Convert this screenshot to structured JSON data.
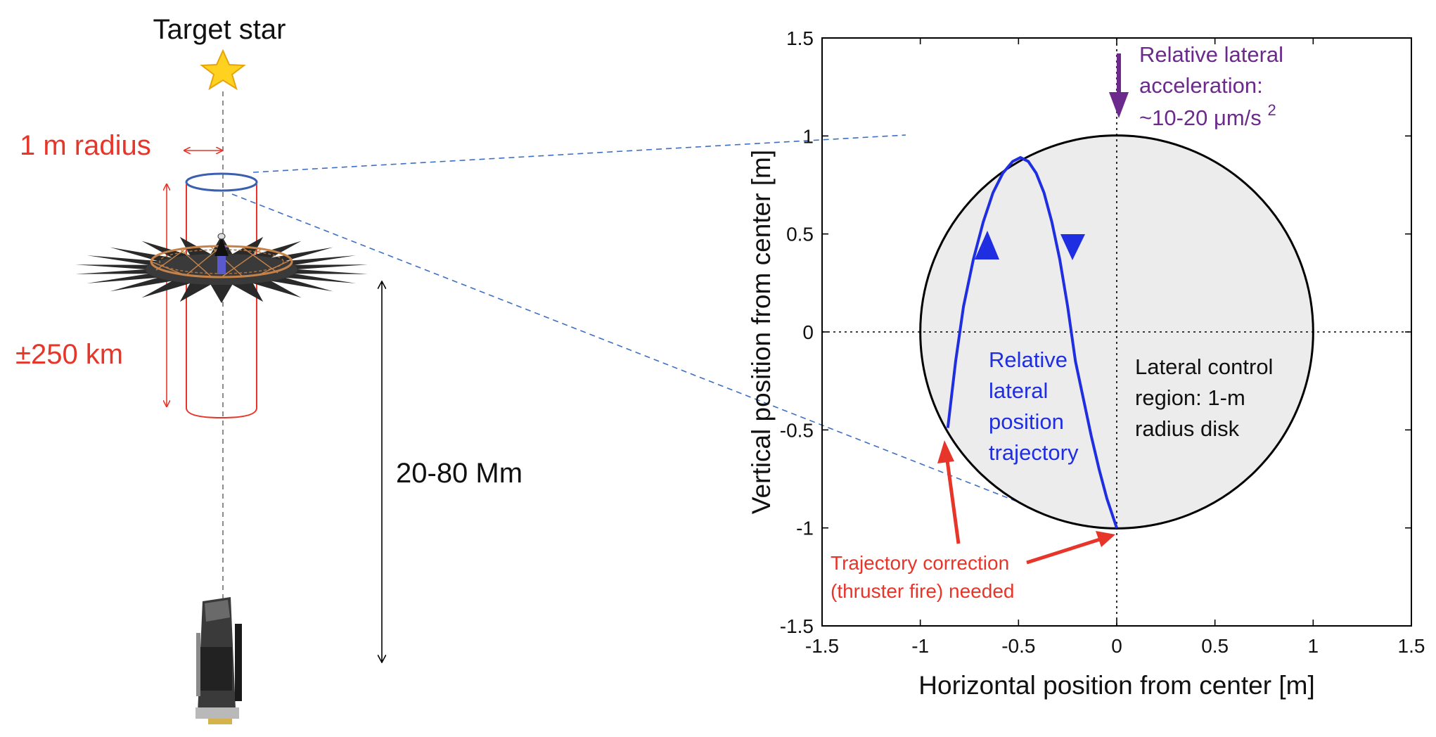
{
  "left_panel": {
    "target_star_label": "Target star",
    "radius_label": "1 m radius",
    "tolerance_label": "±250 km",
    "distance_label": "20-80 Mm"
  },
  "chart_data": {
    "type": "line",
    "xlabel": "Horizontal position from center [m]",
    "ylabel": "Vertical position from center [m]",
    "xlim": [
      -1.5,
      1.5
    ],
    "ylim": [
      -1.5,
      1.5
    ],
    "x_ticks": [
      -1.5,
      -1,
      -0.5,
      0,
      0.5,
      1,
      1.5
    ],
    "y_ticks": [
      -1.5,
      -1,
      -0.5,
      0,
      0.5,
      1,
      1.5
    ],
    "x_tick_labels": [
      "-1.5",
      "-1",
      "-0.5",
      "0",
      "0.5",
      "1",
      "1.5"
    ],
    "y_tick_labels": [
      "-1.5",
      "-1",
      "-0.5",
      "0",
      "0.5",
      "1",
      "1.5"
    ],
    "control_region": {
      "center": [
        0,
        0
      ],
      "radius": 1
    },
    "trajectory": {
      "x": [
        -0.86,
        -0.82,
        -0.78,
        -0.73,
        -0.68,
        -0.63,
        -0.58,
        -0.53,
        -0.49,
        -0.45,
        -0.41,
        -0.37,
        -0.33,
        -0.29,
        -0.25,
        -0.21,
        -0.17,
        -0.13,
        -0.09,
        -0.05,
        0.0
      ],
      "y": [
        -0.49,
        -0.15,
        0.13,
        0.37,
        0.56,
        0.71,
        0.81,
        0.87,
        0.89,
        0.87,
        0.81,
        0.71,
        0.56,
        0.37,
        0.13,
        -0.15,
        -0.34,
        -0.53,
        -0.7,
        -0.85,
        -1.0
      ]
    },
    "annotations": {
      "acceleration": [
        "Relative lateral",
        "acceleration:",
        "~10-20 μm/s"
      ],
      "acceleration_exponent": "2",
      "trajectory_label": [
        "Relative",
        "lateral",
        "position",
        "trajectory"
      ],
      "region_label": [
        "Lateral control",
        "region: 1-m",
        "radius disk"
      ],
      "correction_label": [
        "Trajectory correction",
        "(thruster fire) needed"
      ]
    },
    "colors": {
      "trajectory": "#1f2ee0",
      "acceleration": "#6b2a8c",
      "correction": "#e8352a",
      "disk_fill": "#ececec",
      "guide": "#3d6fc4"
    }
  }
}
